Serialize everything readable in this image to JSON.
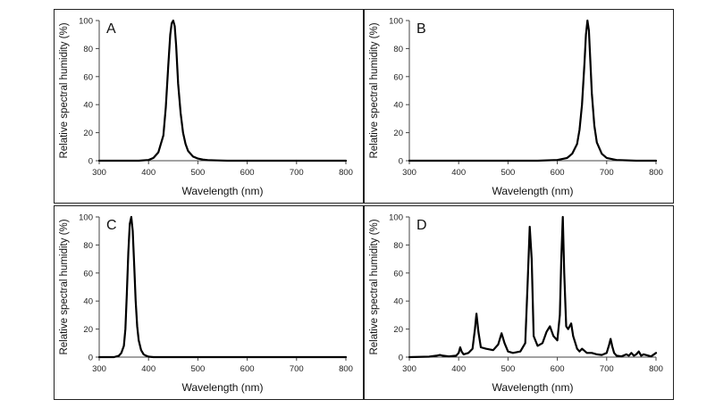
{
  "chart_data": [
    {
      "type": "line",
      "panel": "A",
      "xlabel": "Wavelength (nm)",
      "ylabel": "Relative spectral humidity (%)",
      "xlim": [
        300,
        800
      ],
      "ylim": [
        0,
        100
      ],
      "xticks": [
        300,
        400,
        500,
        600,
        700,
        800
      ],
      "yticks": [
        0,
        20,
        40,
        60,
        80,
        100
      ],
      "series": [
        {
          "name": "A",
          "x": [
            300,
            380,
            400,
            410,
            420,
            430,
            435,
            440,
            444,
            447,
            450,
            453,
            456,
            460,
            465,
            470,
            475,
            480,
            490,
            500,
            510,
            520,
            540,
            560,
            600,
            700,
            800
          ],
          "y": [
            0,
            0,
            0.5,
            2,
            6,
            18,
            38,
            68,
            90,
            98,
            100,
            96,
            82,
            55,
            34,
            20,
            12,
            7,
            3,
            1.5,
            0.8,
            0.4,
            0.2,
            0,
            0,
            0,
            0
          ]
        }
      ]
    },
    {
      "type": "line",
      "panel": "B",
      "xlabel": "Wavelength (nm)",
      "ylabel": "Relative spectral humidity (%)",
      "xlim": [
        300,
        800
      ],
      "ylim": [
        0,
        100
      ],
      "xticks": [
        300,
        400,
        500,
        600,
        700,
        800
      ],
      "yticks": [
        0,
        20,
        40,
        60,
        80,
        100
      ],
      "series": [
        {
          "name": "B",
          "x": [
            300,
            500,
            560,
            600,
            620,
            630,
            640,
            645,
            650,
            655,
            658,
            661,
            664,
            667,
            670,
            675,
            680,
            690,
            700,
            720,
            760,
            800
          ],
          "y": [
            0,
            0,
            0,
            0.5,
            2,
            5,
            12,
            22,
            40,
            70,
            90,
            100,
            93,
            70,
            48,
            25,
            13,
            5,
            2,
            0.5,
            0,
            0
          ]
        }
      ]
    },
    {
      "type": "line",
      "panel": "C",
      "xlabel": "Wavelength (nm)",
      "ylabel": "Relative spectral humidity (%)",
      "xlim": [
        300,
        800
      ],
      "ylim": [
        0,
        100
      ],
      "xticks": [
        300,
        400,
        500,
        600,
        700,
        800
      ],
      "yticks": [
        0,
        20,
        40,
        60,
        80,
        100
      ],
      "series": [
        {
          "name": "C",
          "x": [
            300,
            330,
            340,
            345,
            350,
            353,
            356,
            359,
            362,
            365,
            368,
            371,
            374,
            377,
            380,
            385,
            390,
            395,
            400,
            410,
            450,
            500,
            800
          ],
          "y": [
            0,
            0,
            1,
            3,
            8,
            20,
            45,
            75,
            95,
            100,
            90,
            65,
            40,
            22,
            12,
            5,
            2,
            1,
            0.3,
            0,
            0,
            0,
            0
          ]
        }
      ]
    },
    {
      "type": "line",
      "panel": "D",
      "xlabel": "Wavelength (nm)",
      "ylabel": "Relative spectral humidity (%)",
      "xlim": [
        300,
        800
      ],
      "ylim": [
        0,
        100
      ],
      "xticks": [
        300,
        400,
        500,
        600,
        700,
        800
      ],
      "yticks": [
        0,
        20,
        40,
        60,
        80,
        100
      ],
      "series": [
        {
          "name": "D",
          "x": [
            300,
            340,
            355,
            362,
            368,
            380,
            395,
            400,
            403,
            406,
            410,
            420,
            428,
            433,
            436,
            440,
            445,
            455,
            470,
            480,
            487,
            493,
            500,
            510,
            525,
            535,
            540,
            544,
            548,
            552,
            560,
            570,
            578,
            585,
            592,
            600,
            605,
            608,
            611,
            614,
            618,
            622,
            628,
            632,
            640,
            645,
            650,
            660,
            670,
            680,
            690,
            700,
            705,
            708,
            711,
            715,
            720,
            730,
            740,
            745,
            750,
            755,
            760,
            765,
            770,
            775,
            790,
            800
          ],
          "y": [
            0,
            0.3,
            1,
            1.5,
            1,
            0.5,
            1,
            3,
            7,
            4,
            2,
            3,
            6,
            20,
            31,
            18,
            7,
            6,
            5,
            9,
            17,
            10,
            4,
            3,
            4,
            10,
            55,
            93,
            70,
            15,
            8,
            10,
            18,
            22,
            15,
            12,
            30,
            70,
            100,
            60,
            22,
            20,
            24,
            15,
            6,
            4,
            6,
            3,
            3,
            2,
            1.5,
            3,
            9,
            13,
            8,
            3,
            1,
            0.5,
            2,
            1,
            3,
            1,
            2,
            4,
            1,
            2,
            0.5,
            3
          ]
        }
      ]
    }
  ]
}
